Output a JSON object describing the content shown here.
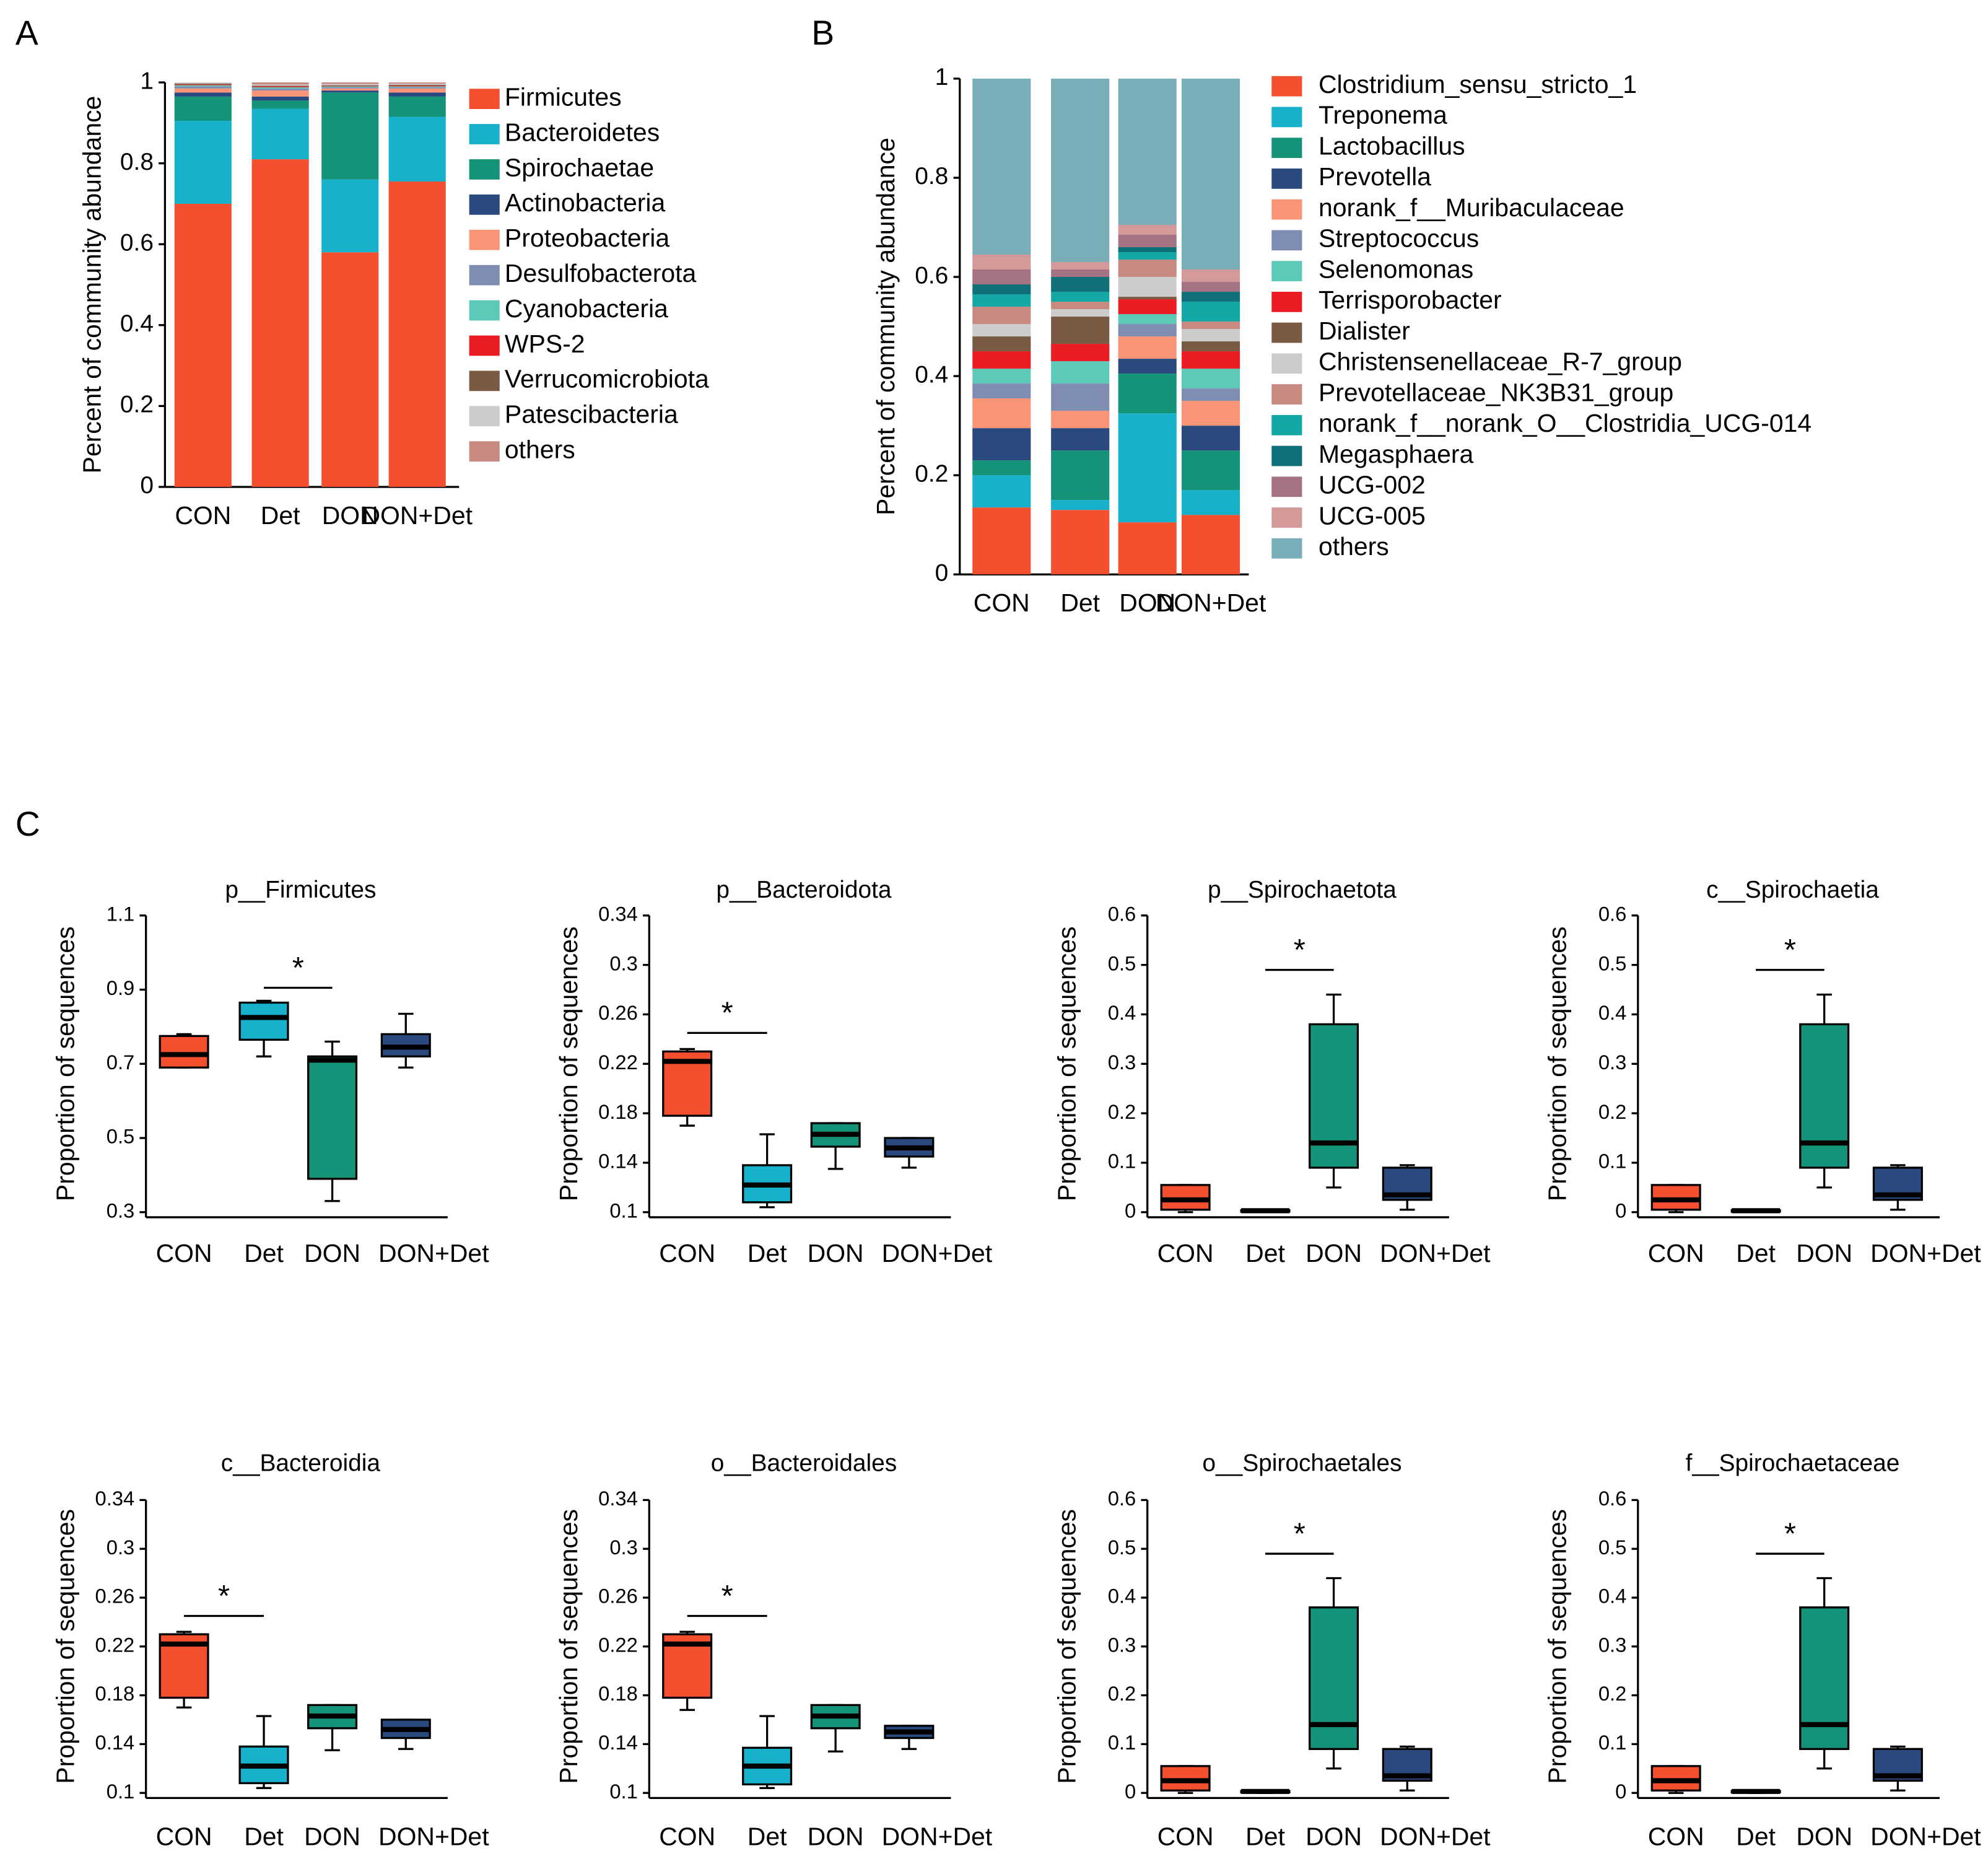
{
  "panel_labels": [
    "A",
    "B",
    "C"
  ],
  "chart_data": [
    {
      "type": "stacked_bar",
      "ylabel": "Percent of community abundance",
      "categories": [
        "CON",
        "Det",
        "DON",
        "DON+Det"
      ],
      "ylim": [
        0,
        1
      ],
      "yticks": [
        0,
        0.2,
        0.4,
        0.6,
        0.8,
        1
      ],
      "series": [
        {
          "name": "Firmicutes",
          "color": "#f4502f",
          "values": [
            0.7,
            0.81,
            0.58,
            0.755
          ]
        },
        {
          "name": "Bacteroidetes",
          "color": "#17b1cb",
          "values": [
            0.205,
            0.125,
            0.18,
            0.16
          ]
        },
        {
          "name": "Spirochaetae",
          "color": "#149379",
          "values": [
            0.06,
            0.02,
            0.215,
            0.05
          ]
        },
        {
          "name": "Actinobacteria",
          "color": "#2a4a7f",
          "values": [
            0.01,
            0.01,
            0.005,
            0.01
          ]
        },
        {
          "name": "Proteobacteria",
          "color": "#f99576",
          "values": [
            0.01,
            0.015,
            0.005,
            0.01
          ]
        },
        {
          "name": "Desulfobacterota",
          "color": "#7f8db3",
          "values": [
            0.005,
            0.005,
            0.003,
            0.003
          ]
        },
        {
          "name": "Cyanobacteria",
          "color": "#5ccab6",
          "values": [
            0.003,
            0.003,
            0.002,
            0.002
          ]
        },
        {
          "name": "WPS-2",
          "color": "#eb1c24",
          "values": [
            0.002,
            0.002,
            0.001,
            0.002
          ]
        },
        {
          "name": "Verrucomicrobiota",
          "color": "#7b5a44",
          "values": [
            0.002,
            0.002,
            0.002,
            0.002
          ]
        },
        {
          "name": "Patescibacteria",
          "color": "#cccccc",
          "values": [
            0.003,
            0.003,
            0.003,
            0.003
          ]
        },
        {
          "name": "others",
          "color": "#c88a80",
          "values": [
            0.0,
            0.005,
            0.004,
            0.003
          ]
        }
      ]
    },
    {
      "type": "stacked_bar",
      "ylabel": "Percent of community abundance",
      "categories": [
        "CON",
        "Det",
        "DON",
        "DON+Det"
      ],
      "ylim": [
        0,
        1
      ],
      "yticks": [
        0,
        0.2,
        0.4,
        0.6,
        0.8,
        1
      ],
      "series": [
        {
          "name": "Clostridium_sensu_stricto_1",
          "color": "#f4502f",
          "values": [
            0.135,
            0.13,
            0.105,
            0.12
          ]
        },
        {
          "name": "Treponema",
          "color": "#17b1cb",
          "values": [
            0.065,
            0.02,
            0.22,
            0.05
          ]
        },
        {
          "name": "Lactobacillus",
          "color": "#149379",
          "values": [
            0.03,
            0.1,
            0.08,
            0.08
          ]
        },
        {
          "name": "Prevotella",
          "color": "#2a4a7f",
          "values": [
            0.065,
            0.045,
            0.03,
            0.05
          ]
        },
        {
          "name": "norank_f__Muribaculaceae",
          "color": "#f99576",
          "values": [
            0.06,
            0.035,
            0.045,
            0.05
          ]
        },
        {
          "name": "Streptococcus",
          "color": "#7f8db3",
          "values": [
            0.03,
            0.055,
            0.025,
            0.025
          ]
        },
        {
          "name": "Selenomonas",
          "color": "#5ccab6",
          "values": [
            0.03,
            0.045,
            0.02,
            0.04
          ]
        },
        {
          "name": "Terrisporobacter",
          "color": "#eb1c24",
          "values": [
            0.035,
            0.035,
            0.03,
            0.035
          ]
        },
        {
          "name": "Dialister",
          "color": "#7b5a44",
          "values": [
            0.03,
            0.055,
            0.005,
            0.02
          ]
        },
        {
          "name": "Christensenellaceae_R-7_group",
          "color": "#cccccc",
          "values": [
            0.025,
            0.015,
            0.04,
            0.025
          ]
        },
        {
          "name": "Prevotellaceae_NK3B31_group",
          "color": "#c88a80",
          "values": [
            0.035,
            0.015,
            0.035,
            0.015
          ]
        },
        {
          "name": "norank_f__norank_O__Clostridia_UCG-014",
          "color": "#13a8a5",
          "values": [
            0.025,
            0.02,
            0.015,
            0.04
          ]
        },
        {
          "name": "Megasphaera",
          "color": "#10707a",
          "values": [
            0.02,
            0.03,
            0.01,
            0.02
          ]
        },
        {
          "name": "UCG-002",
          "color": "#a47283",
          "values": [
            0.03,
            0.015,
            0.025,
            0.02
          ]
        },
        {
          "name": "UCG-005",
          "color": "#d49a9a",
          "values": [
            0.03,
            0.015,
            0.02,
            0.025
          ]
        },
        {
          "name": "others",
          "color": "#79adb8",
          "values": [
            0.355,
            0.37,
            0.295,
            0.385
          ]
        }
      ]
    },
    {
      "type": "box",
      "title": "p__Firmicutes",
      "ylabel": "Proportion of sequences",
      "categories": [
        "CON",
        "Det",
        "DON",
        "DON+Det"
      ],
      "colors": [
        "#f4502f",
        "#17b1cb",
        "#149379",
        "#2a4a7f"
      ],
      "ylim": [
        0.3,
        1.1
      ],
      "yticks": [
        0.3,
        0.5,
        0.7,
        0.9,
        1.1
      ],
      "boxes": [
        {
          "min": 0.69,
          "q1": 0.69,
          "median": 0.725,
          "q3": 0.775,
          "max": 0.78
        },
        {
          "min": 0.72,
          "q1": 0.765,
          "median": 0.825,
          "q3": 0.865,
          "max": 0.87
        },
        {
          "min": 0.33,
          "q1": 0.39,
          "median": 0.71,
          "q3": 0.72,
          "max": 0.76
        },
        {
          "min": 0.69,
          "q1": 0.72,
          "median": 0.745,
          "q3": 0.78,
          "max": 0.835
        }
      ],
      "annotations": [
        {
          "text": "*",
          "x": [
            "Det",
            "DON"
          ],
          "y": 0.905
        }
      ]
    },
    {
      "type": "box",
      "title": "p__Bacteroidota",
      "ylabel": "Proportion of sequences",
      "categories": [
        "CON",
        "Det",
        "DON",
        "DON+Det"
      ],
      "colors": [
        "#f4502f",
        "#17b1cb",
        "#149379",
        "#2a4a7f"
      ],
      "ylim": [
        0.1,
        0.34
      ],
      "yticks": [
        0.1,
        0.14,
        0.18,
        0.22,
        0.26,
        0.3,
        0.34
      ],
      "boxes": [
        {
          "min": 0.17,
          "q1": 0.178,
          "median": 0.222,
          "q3": 0.23,
          "max": 0.232
        },
        {
          "min": 0.104,
          "q1": 0.108,
          "median": 0.122,
          "q3": 0.138,
          "max": 0.163
        },
        {
          "min": 0.135,
          "q1": 0.153,
          "median": 0.163,
          "q3": 0.172,
          "max": 0.172
        },
        {
          "min": 0.136,
          "q1": 0.145,
          "median": 0.152,
          "q3": 0.16,
          "max": 0.16
        }
      ],
      "annotations": [
        {
          "text": "*",
          "x": [
            "CON",
            "Det"
          ],
          "y": 0.245
        }
      ]
    },
    {
      "type": "box",
      "title": "p__Spirochaetota",
      "ylabel": "Proportion of sequences",
      "categories": [
        "CON",
        "Det",
        "DON",
        "DON+Det"
      ],
      "colors": [
        "#f4502f",
        "#17b1cb",
        "#149379",
        "#2a4a7f"
      ],
      "ylim": [
        0,
        0.6
      ],
      "yticks": [
        0,
        0.1,
        0.2,
        0.3,
        0.4,
        0.5,
        0.6
      ],
      "boxes": [
        {
          "min": 0,
          "q1": 0.005,
          "median": 0.025,
          "q3": 0.055,
          "max": 0.055
        },
        {
          "min": 0,
          "q1": 0.001,
          "median": 0.003,
          "q3": 0.004,
          "max": 0.005
        },
        {
          "min": 0.05,
          "q1": 0.09,
          "median": 0.14,
          "q3": 0.38,
          "max": 0.44
        },
        {
          "min": 0.005,
          "q1": 0.025,
          "median": 0.035,
          "q3": 0.09,
          "max": 0.095
        }
      ],
      "annotations": [
        {
          "text": "*",
          "x": [
            "Det",
            "DON"
          ],
          "y": 0.49
        }
      ]
    },
    {
      "type": "box",
      "title": "c__Spirochaetia",
      "ylabel": "Proportion of sequences",
      "categories": [
        "CON",
        "Det",
        "DON",
        "DON+Det"
      ],
      "colors": [
        "#f4502f",
        "#17b1cb",
        "#149379",
        "#2a4a7f"
      ],
      "ylim": [
        0,
        0.6
      ],
      "yticks": [
        0,
        0.1,
        0.2,
        0.3,
        0.4,
        0.5,
        0.6
      ],
      "boxes": [
        {
          "min": 0,
          "q1": 0.005,
          "median": 0.025,
          "q3": 0.055,
          "max": 0.055
        },
        {
          "min": 0,
          "q1": 0.001,
          "median": 0.003,
          "q3": 0.004,
          "max": 0.005
        },
        {
          "min": 0.05,
          "q1": 0.09,
          "median": 0.14,
          "q3": 0.38,
          "max": 0.44
        },
        {
          "min": 0.005,
          "q1": 0.025,
          "median": 0.035,
          "q3": 0.09,
          "max": 0.095
        }
      ],
      "annotations": [
        {
          "text": "*",
          "x": [
            "Det",
            "DON"
          ],
          "y": 0.49
        }
      ]
    },
    {
      "type": "box",
      "title": "c__Bacteroidia",
      "ylabel": "Proportion of sequences",
      "categories": [
        "CON",
        "Det",
        "DON",
        "DON+Det"
      ],
      "colors": [
        "#f4502f",
        "#17b1cb",
        "#149379",
        "#2a4a7f"
      ],
      "ylim": [
        0.1,
        0.34
      ],
      "yticks": [
        0.1,
        0.14,
        0.18,
        0.22,
        0.26,
        0.3,
        0.34
      ],
      "boxes": [
        {
          "min": 0.17,
          "q1": 0.178,
          "median": 0.222,
          "q3": 0.23,
          "max": 0.232
        },
        {
          "min": 0.104,
          "q1": 0.108,
          "median": 0.122,
          "q3": 0.138,
          "max": 0.163
        },
        {
          "min": 0.135,
          "q1": 0.153,
          "median": 0.163,
          "q3": 0.172,
          "max": 0.172
        },
        {
          "min": 0.136,
          "q1": 0.145,
          "median": 0.152,
          "q3": 0.16,
          "max": 0.16
        }
      ],
      "annotations": [
        {
          "text": "*",
          "x": [
            "CON",
            "Det"
          ],
          "y": 0.245
        }
      ]
    },
    {
      "type": "box",
      "title": "o__Bacteroidales",
      "ylabel": "Proportion of sequences",
      "categories": [
        "CON",
        "Det",
        "DON",
        "DON+Det"
      ],
      "colors": [
        "#f4502f",
        "#17b1cb",
        "#149379",
        "#2a4a7f"
      ],
      "ylim": [
        0.1,
        0.34
      ],
      "yticks": [
        0.1,
        0.14,
        0.18,
        0.22,
        0.26,
        0.3,
        0.34
      ],
      "boxes": [
        {
          "min": 0.168,
          "q1": 0.178,
          "median": 0.222,
          "q3": 0.23,
          "max": 0.232
        },
        {
          "min": 0.104,
          "q1": 0.107,
          "median": 0.122,
          "q3": 0.137,
          "max": 0.163
        },
        {
          "min": 0.134,
          "q1": 0.153,
          "median": 0.163,
          "q3": 0.172,
          "max": 0.172
        },
        {
          "min": 0.136,
          "q1": 0.145,
          "median": 0.15,
          "q3": 0.155,
          "max": 0.155
        }
      ],
      "annotations": [
        {
          "text": "*",
          "x": [
            "CON",
            "Det"
          ],
          "y": 0.245
        }
      ]
    },
    {
      "type": "box",
      "title": "o__Spirochaetales",
      "ylabel": "Proportion of sequences",
      "categories": [
        "CON",
        "Det",
        "DON",
        "DON+Det"
      ],
      "colors": [
        "#f4502f",
        "#17b1cb",
        "#149379",
        "#2a4a7f"
      ],
      "ylim": [
        0,
        0.6
      ],
      "yticks": [
        0,
        0.1,
        0.2,
        0.3,
        0.4,
        0.5,
        0.6
      ],
      "boxes": [
        {
          "min": 0,
          "q1": 0.005,
          "median": 0.025,
          "q3": 0.055,
          "max": 0.055
        },
        {
          "min": 0,
          "q1": 0.001,
          "median": 0.003,
          "q3": 0.004,
          "max": 0.005
        },
        {
          "min": 0.05,
          "q1": 0.09,
          "median": 0.14,
          "q3": 0.38,
          "max": 0.44
        },
        {
          "min": 0.005,
          "q1": 0.025,
          "median": 0.035,
          "q3": 0.09,
          "max": 0.095
        }
      ],
      "annotations": [
        {
          "text": "*",
          "x": [
            "Det",
            "DON"
          ],
          "y": 0.49
        }
      ]
    },
    {
      "type": "box",
      "title": "f__Spirochaetaceae",
      "ylabel": "Proportion of sequences",
      "categories": [
        "CON",
        "Det",
        "DON",
        "DON+Det"
      ],
      "colors": [
        "#f4502f",
        "#17b1cb",
        "#149379",
        "#2a4a7f"
      ],
      "ylim": [
        0,
        0.6
      ],
      "yticks": [
        0,
        0.1,
        0.2,
        0.3,
        0.4,
        0.5,
        0.6
      ],
      "boxes": [
        {
          "min": 0,
          "q1": 0.005,
          "median": 0.025,
          "q3": 0.055,
          "max": 0.055
        },
        {
          "min": 0,
          "q1": 0.001,
          "median": 0.003,
          "q3": 0.004,
          "max": 0.005
        },
        {
          "min": 0.05,
          "q1": 0.09,
          "median": 0.14,
          "q3": 0.38,
          "max": 0.44
        },
        {
          "min": 0.005,
          "q1": 0.025,
          "median": 0.035,
          "q3": 0.09,
          "max": 0.095
        }
      ],
      "annotations": [
        {
          "text": "*",
          "x": [
            "Det",
            "DON"
          ],
          "y": 0.49
        }
      ]
    }
  ]
}
